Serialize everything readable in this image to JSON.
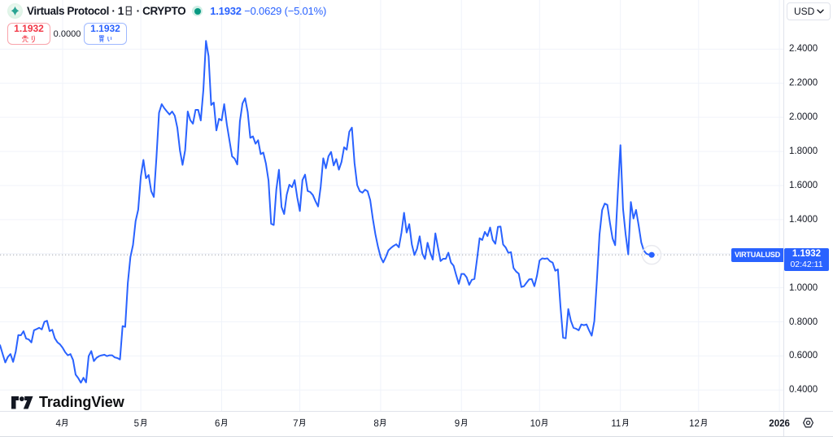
{
  "header": {
    "logo_icon": "virtuals-protocol-logo",
    "title": "Virtuals Protocol · 1日 · CRYPTO",
    "price": "1.1932",
    "change": "−0.0629 (−5.01%)"
  },
  "order_buttons": {
    "sell_price": "1.1932",
    "sell_label": "売り",
    "spread": "0.0000",
    "buy_price": "1.1932",
    "buy_label": "買い"
  },
  "price_axis": {
    "currency_button": "USD",
    "ticks": [
      {
        "value": 2.4,
        "label": "2.4000"
      },
      {
        "value": 2.2,
        "label": "2.2000"
      },
      {
        "value": 2.0,
        "label": "2.0000"
      },
      {
        "value": 1.8,
        "label": "1.8000"
      },
      {
        "value": 1.6,
        "label": "1.6000"
      },
      {
        "value": 1.4,
        "label": "1.4000"
      },
      {
        "value": 1.2,
        "label": ""
      },
      {
        "value": 1.0,
        "label": "1.0000"
      },
      {
        "value": 0.8,
        "label": "0.8000"
      },
      {
        "value": 0.6,
        "label": "0.6000"
      },
      {
        "value": 0.4,
        "label": "0.4000"
      }
    ],
    "last_price_label": "1.1932",
    "countdown": "02:42:11"
  },
  "time_axis": {
    "ticks": [
      {
        "date": "2025-04-01",
        "label": "4月"
      },
      {
        "date": "2025-05-01",
        "label": "5月"
      },
      {
        "date": "2025-06-01",
        "label": "6月"
      },
      {
        "date": "2025-07-01",
        "label": "7月"
      },
      {
        "date": "2025-08-01",
        "label": "8月"
      },
      {
        "date": "2025-09-01",
        "label": "9月"
      },
      {
        "date": "2025-10-01",
        "label": "10月"
      },
      {
        "date": "2025-11-01",
        "label": "11月"
      },
      {
        "date": "2025-12-01",
        "label": "12月"
      },
      {
        "date": "2026-01-01",
        "label": "2026",
        "bold": true
      }
    ]
  },
  "series_label": "VIRTUALUSD",
  "attribution": "TradingView",
  "colors": {
    "accent": "#2962FF",
    "sell_red": "#F23645",
    "status_green": "#089981",
    "text": "#131722",
    "grid": "#F0F3FA",
    "axis_border": "#E0E3EB"
  },
  "chart_data": {
    "type": "line",
    "title": "Virtuals Protocol",
    "interval": "1日",
    "market": "CRYPTO",
    "symbol": "VIRTUALUSD",
    "currency": "USD",
    "last_price": 1.1932,
    "change": -0.0629,
    "change_percent": -5.01,
    "session_countdown": "02:42:11",
    "ylabel": "",
    "xlabel": "",
    "ylim": [
      0.2773,
      2.6884
    ],
    "x_visible_range": [
      "2025-03-08",
      "2026-01-02"
    ],
    "grid": true,
    "legend_position": "none",
    "dates": [
      "2025-03-08",
      "2025-03-09",
      "2025-03-10",
      "2025-03-11",
      "2025-03-12",
      "2025-03-13",
      "2025-03-14",
      "2025-03-15",
      "2025-03-16",
      "2025-03-17",
      "2025-03-18",
      "2025-03-19",
      "2025-03-20",
      "2025-03-21",
      "2025-03-22",
      "2025-03-23",
      "2025-03-24",
      "2025-03-25",
      "2025-03-26",
      "2025-03-27",
      "2025-03-28",
      "2025-03-29",
      "2025-03-30",
      "2025-03-31",
      "2025-04-01",
      "2025-04-02",
      "2025-04-03",
      "2025-04-04",
      "2025-04-05",
      "2025-04-06",
      "2025-04-07",
      "2025-04-08",
      "2025-04-09",
      "2025-04-10",
      "2025-04-11",
      "2025-04-12",
      "2025-04-13",
      "2025-04-14",
      "2025-04-15",
      "2025-04-16",
      "2025-04-17",
      "2025-04-18",
      "2025-04-19",
      "2025-04-20",
      "2025-04-21",
      "2025-04-22",
      "2025-04-23",
      "2025-04-24",
      "2025-04-25",
      "2025-04-26",
      "2025-04-27",
      "2025-04-28",
      "2025-04-29",
      "2025-04-30",
      "2025-05-01",
      "2025-05-02",
      "2025-05-03",
      "2025-05-04",
      "2025-05-05",
      "2025-05-06",
      "2025-05-07",
      "2025-05-08",
      "2025-05-09",
      "2025-05-10",
      "2025-05-11",
      "2025-05-12",
      "2025-05-13",
      "2025-05-14",
      "2025-05-15",
      "2025-05-16",
      "2025-05-17",
      "2025-05-18",
      "2025-05-19",
      "2025-05-20",
      "2025-05-21",
      "2025-05-22",
      "2025-05-23",
      "2025-05-24",
      "2025-05-25",
      "2025-05-26",
      "2025-05-27",
      "2025-05-28",
      "2025-05-29",
      "2025-05-30",
      "2025-05-31",
      "2025-06-01",
      "2025-06-02",
      "2025-06-03",
      "2025-06-04",
      "2025-06-05",
      "2025-06-06",
      "2025-06-07",
      "2025-06-08",
      "2025-06-09",
      "2025-06-10",
      "2025-06-11",
      "2025-06-12",
      "2025-06-13",
      "2025-06-14",
      "2025-06-15",
      "2025-06-16",
      "2025-06-17",
      "2025-06-18",
      "2025-06-19",
      "2025-06-20",
      "2025-06-21",
      "2025-06-22",
      "2025-06-23",
      "2025-06-24",
      "2025-06-25",
      "2025-06-26",
      "2025-06-27",
      "2025-06-28",
      "2025-06-29",
      "2025-06-30",
      "2025-07-01",
      "2025-07-02",
      "2025-07-03",
      "2025-07-04",
      "2025-07-05",
      "2025-07-06",
      "2025-07-07",
      "2025-07-08",
      "2025-07-09",
      "2025-07-10",
      "2025-07-11",
      "2025-07-12",
      "2025-07-13",
      "2025-07-14",
      "2025-07-15",
      "2025-07-16",
      "2025-07-17",
      "2025-07-18",
      "2025-07-19",
      "2025-07-20",
      "2025-07-21",
      "2025-07-22",
      "2025-07-23",
      "2025-07-24",
      "2025-07-25",
      "2025-07-26",
      "2025-07-27",
      "2025-07-28",
      "2025-07-29",
      "2025-07-30",
      "2025-07-31",
      "2025-08-01",
      "2025-08-02",
      "2025-08-03",
      "2025-08-04",
      "2025-08-05",
      "2025-08-06",
      "2025-08-07",
      "2025-08-08",
      "2025-08-09",
      "2025-08-10",
      "2025-08-11",
      "2025-08-12",
      "2025-08-13",
      "2025-08-14",
      "2025-08-15",
      "2025-08-16",
      "2025-08-17",
      "2025-08-18",
      "2025-08-19",
      "2025-08-20",
      "2025-08-21",
      "2025-08-22",
      "2025-08-23",
      "2025-08-24",
      "2025-08-25",
      "2025-08-26",
      "2025-08-27",
      "2025-08-28",
      "2025-08-29",
      "2025-08-30",
      "2025-08-31",
      "2025-09-01",
      "2025-09-02",
      "2025-09-03",
      "2025-09-04",
      "2025-09-05",
      "2025-09-06",
      "2025-09-07",
      "2025-09-08",
      "2025-09-09",
      "2025-09-10",
      "2025-09-11",
      "2025-09-12",
      "2025-09-13",
      "2025-09-14",
      "2025-09-15",
      "2025-09-16",
      "2025-09-17",
      "2025-09-18",
      "2025-09-19",
      "2025-09-20",
      "2025-09-21",
      "2025-09-22",
      "2025-09-23",
      "2025-09-24",
      "2025-09-25",
      "2025-09-26",
      "2025-09-27",
      "2025-09-28",
      "2025-09-29",
      "2025-09-30",
      "2025-10-01",
      "2025-10-02",
      "2025-10-03",
      "2025-10-04",
      "2025-10-05",
      "2025-10-06",
      "2025-10-07",
      "2025-10-08",
      "2025-10-09",
      "2025-10-10",
      "2025-10-11",
      "2025-10-12",
      "2025-10-13",
      "2025-10-14",
      "2025-10-15",
      "2025-10-16",
      "2025-10-17",
      "2025-10-18",
      "2025-10-19",
      "2025-10-20",
      "2025-10-21",
      "2025-10-22",
      "2025-10-23",
      "2025-10-24",
      "2025-10-25",
      "2025-10-26",
      "2025-10-27",
      "2025-10-28",
      "2025-10-29",
      "2025-10-30",
      "2025-10-31",
      "2025-11-01",
      "2025-11-02",
      "2025-11-03",
      "2025-11-04",
      "2025-11-05",
      "2025-11-06",
      "2025-11-07",
      "2025-11-08",
      "2025-11-09",
      "2025-11-10",
      "2025-11-11",
      "2025-11-12",
      "2025-11-13"
    ],
    "prices": [
      0.6626,
      0.611,
      0.5619,
      0.5943,
      0.611,
      0.5652,
      0.6243,
      0.7225,
      0.7213,
      0.7452,
      0.7017,
      0.697,
      0.6793,
      0.7509,
      0.7576,
      0.7652,
      0.7557,
      0.8004,
      0.8063,
      0.7457,
      0.7538,
      0.7036,
      0.6804,
      0.6678,
      0.648,
      0.6216,
      0.6039,
      0.611,
      0.5768,
      0.4903,
      0.4702,
      0.443,
      0.4721,
      0.4449,
      0.5991,
      0.6287,
      0.57,
      0.5895,
      0.5991,
      0.6039,
      0.6072,
      0.5991,
      0.6039,
      0.6039,
      0.5915,
      0.5876,
      0.5795,
      0.7753,
      0.7705,
      1.0269,
      1.1797,
      1.2513,
      1.391,
      1.4585,
      1.6526,
      1.7502,
      1.6428,
      1.6619,
      1.5664,
      1.533,
      1.7632,
      2.0267,
      2.0772,
      2.0534,
      2.0343,
      2.0168,
      2.0343,
      2.0099,
      1.9394,
      1.806,
      1.7211,
      1.8075,
      2.0343,
      1.9828,
      1.9627,
      2.0438,
      2.0438,
      1.9818,
      2.1604,
      2.4482,
      2.3585,
      2.0725,
      2.0868,
      1.923,
      1.9913,
      1.9818,
      2.0772,
      1.9574,
      1.8644,
      1.7712,
      1.7574,
      1.7235,
      1.9762,
      2.0818,
      2.1121,
      2.0309,
      1.8796,
      1.8882,
      1.8452,
      1.8657,
      1.7841,
      1.7932,
      1.7287,
      1.629,
      1.3754,
      1.3683,
      1.5766,
      1.6924,
      1.4736,
      1.4327,
      1.5467,
      1.6046,
      1.5903,
      1.6318,
      1.5304,
      1.4504,
      1.6319,
      1.6638,
      1.5677,
      1.5616,
      1.544,
      1.5082,
      1.4771,
      1.5918,
      1.7598,
      1.701,
      1.7718,
      1.797,
      1.7177,
      1.755,
      1.6929,
      1.738,
      1.8242,
      1.8104,
      1.9154,
      1.9397,
      1.7324,
      1.6022,
      1.5664,
      1.5578,
      1.5755,
      1.5664,
      1.5142,
      1.4057,
      1.3128,
      1.2396,
      1.1801,
      1.1486,
      1.1806,
      1.2198,
      1.2341,
      1.246,
      1.2551,
      1.2374,
      1.3229,
      1.4399,
      1.3243,
      1.3735,
      1.2536,
      1.1921,
      1.2294,
      1.3019,
      1.1997,
      1.1692,
      1.2642,
      1.2069,
      1.1653,
      1.3191,
      1.2362,
      1.1569,
      1.1701,
      1.1701,
      1.2059,
      1.1477,
      1.1295,
      1.0741,
      1.0231,
      1.0813,
      1.0813,
      1.0618,
      1.0173,
      1.0471,
      1.0517,
      1.1675,
      1.2909,
      1.2804,
      1.3277,
      1.3033,
      1.3534,
      1.2809,
      1.258,
      1.3571,
      1.3592,
      1.2537,
      1.236,
      1.205,
      1.2093,
      1.1157,
      1.0952,
      1.0826,
      1.0044,
      1.0092,
      1.0297,
      1.0493,
      1.0508,
      1.0092,
      1.0709,
      1.1601,
      1.1725,
      1.1701,
      1.1725,
      1.1558,
      1.1473,
      1.0999,
      1.108,
      0.8897,
      0.7075,
      0.7037,
      0.8751,
      0.8058,
      0.7652,
      0.7595,
      0.7504,
      0.7848,
      0.7805,
      0.7848,
      0.7497,
      0.7189,
      0.8051,
      1.0459,
      1.3133,
      1.456,
      1.4938,
      1.4862,
      1.3813,
      1.2895,
      1.2498,
      1.5599,
      1.8366,
      1.4639,
      1.3133,
      1.1959,
      1.5034,
      1.4064,
      1.4566,
      1.366,
      1.266,
      1.2179,
      1.1997,
      1.1946,
      1.1932
    ]
  }
}
